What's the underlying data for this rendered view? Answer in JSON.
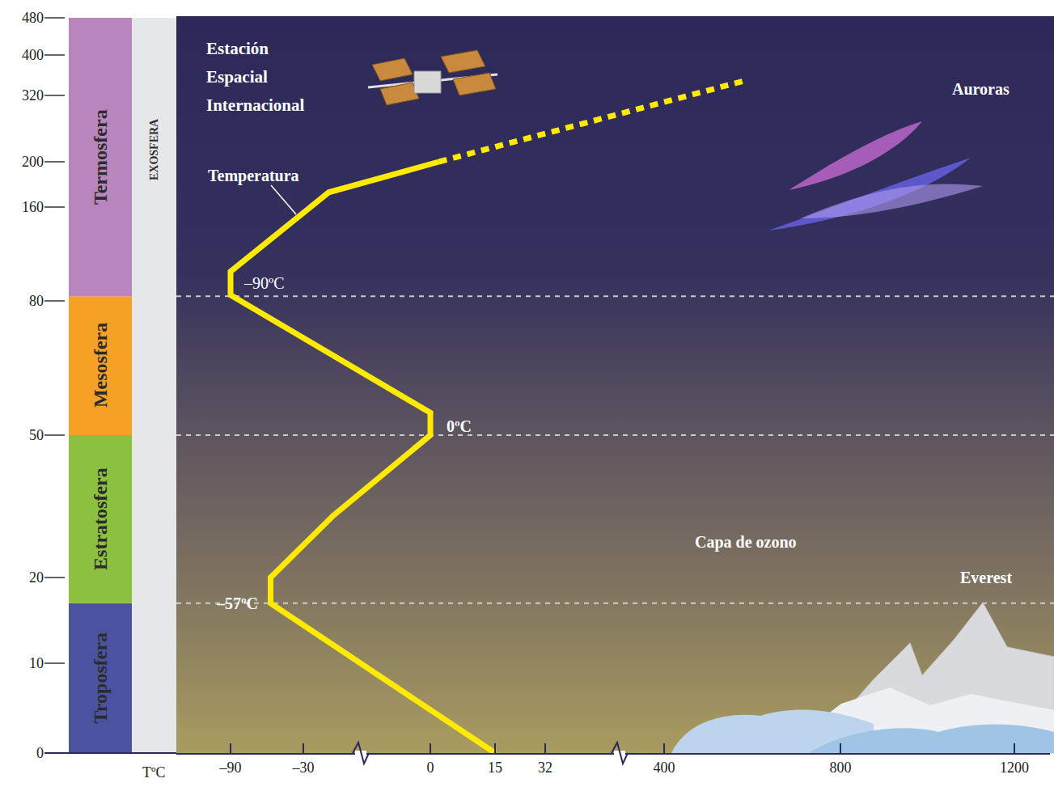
{
  "chart_data": {
    "type": "line",
    "xlabel": "TºC",
    "xlim": [
      -135,
      1280
    ],
    "xticks": [
      {
        "value": -90,
        "label": "–90"
      },
      {
        "value": -30,
        "label": "–30"
      },
      0,
      15,
      32,
      400,
      800,
      1200
    ],
    "ylim": [
      0,
      480
    ],
    "yticks": [
      0,
      10,
      20,
      50,
      80,
      160,
      200,
      320,
      400,
      480
    ],
    "grid": false,
    "series": [
      {
        "name": "Temperatura",
        "color": "#ffea00",
        "line_style": "solid",
        "x": [
          15,
          -57,
          -57,
          -23,
          0,
          0,
          -90,
          -90,
          -24,
          2
        ],
        "values": [
          0,
          17,
          20,
          33,
          50,
          55,
          85,
          105,
          173,
          200
        ]
      },
      {
        "color": "#ffea00",
        "line_style": "dotted",
        "x": [
          2,
          582
        ],
        "values": [
          200,
          349
        ]
      }
    ],
    "layers": [
      {
        "name": "Troposfera",
        "from": 0,
        "to": 17,
        "color": "#4b53a1"
      },
      {
        "name": "Estratosfera",
        "from": 17,
        "to": 50,
        "color": "#8cc03f"
      },
      {
        "name": "Mesosfera",
        "from": 50,
        "to": 84,
        "color": "#f4a125"
      },
      {
        "name": "Termosfera",
        "from": 84,
        "to": 480,
        "color": "#b885bd"
      }
    ],
    "exosphere": {
      "name": "EXOSFERA",
      "from": 0,
      "to": 480,
      "color": "#e6e7e8"
    },
    "annotations": [
      {
        "text": "–57ºC",
        "x": -57,
        "y": 17
      },
      {
        "text": "–90ºC",
        "x": -90,
        "y": 95
      },
      {
        "text": "0ºC",
        "x": 0,
        "y": 52
      }
    ],
    "labels": [
      "Estación Espacial Internacional",
      "Auroras",
      "Capa de ozono",
      "Everest"
    ]
  }
}
